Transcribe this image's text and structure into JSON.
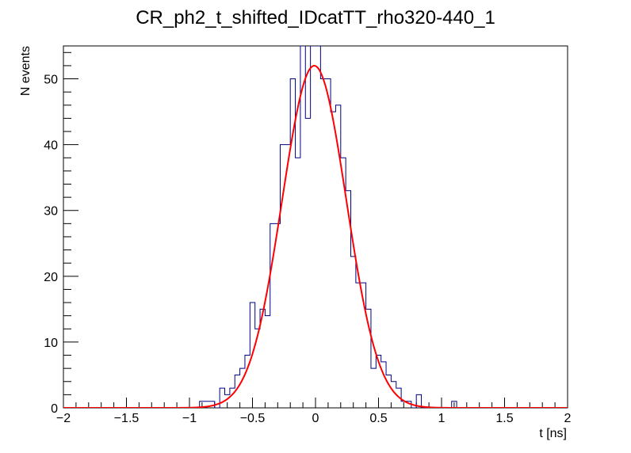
{
  "chart_data": {
    "type": "histogram",
    "title": "CR_ph2_t_shifted_IDcatTT_rho320-440_1",
    "xlabel": "t [ns]",
    "ylabel": "N events",
    "xlim": [
      -2,
      2
    ],
    "ylim": [
      0,
      55
    ],
    "x_ticks": [
      -2,
      -1.5,
      -1,
      -0.5,
      0,
      0.5,
      1,
      1.5,
      2
    ],
    "x_tick_labels": [
      "−2",
      "−1.5",
      "−1",
      "−0.5",
      "0",
      "0.5",
      "1",
      "1.5",
      "2"
    ],
    "y_ticks": [
      0,
      10,
      20,
      30,
      40,
      50
    ],
    "y_tick_labels": [
      "0",
      "10",
      "20",
      "30",
      "40",
      "50"
    ],
    "grid": false,
    "bin_width": 0.04,
    "histogram": {
      "name": "data",
      "color": "#000080",
      "bins_start": [
        -0.92,
        -0.88,
        -0.84,
        -0.8,
        -0.76,
        -0.72,
        -0.68,
        -0.64,
        -0.6,
        -0.56,
        -0.52,
        -0.48,
        -0.44,
        -0.4,
        -0.36,
        -0.32,
        -0.28,
        -0.24,
        -0.2,
        -0.16,
        -0.12,
        -0.08,
        -0.04,
        0.0,
        0.04,
        0.08,
        0.12,
        0.16,
        0.2,
        0.24,
        0.28,
        0.32,
        0.36,
        0.4,
        0.44,
        0.48,
        0.52,
        0.56,
        0.6,
        0.64,
        0.68,
        0.72,
        0.76,
        0.8,
        0.84,
        0.88,
        0.92,
        0.96,
        1.0,
        1.04,
        1.08,
        1.12
      ],
      "counts": [
        1,
        1,
        1,
        0,
        3,
        2,
        3,
        5,
        6,
        8,
        16,
        12,
        15,
        14,
        28,
        28,
        40,
        40,
        50,
        38,
        55,
        44,
        55,
        55,
        50,
        50,
        45,
        46,
        38,
        33,
        23,
        19,
        19,
        15,
        6,
        8,
        7,
        5,
        4,
        3,
        1,
        1,
        0,
        2,
        0,
        0,
        0,
        0,
        0,
        0,
        1,
        0
      ]
    },
    "fit": {
      "name": "gaus",
      "color": "#ff0000",
      "function": "gaussian",
      "amplitude": 52,
      "mean": -0.01,
      "sigma": 0.255
    }
  }
}
